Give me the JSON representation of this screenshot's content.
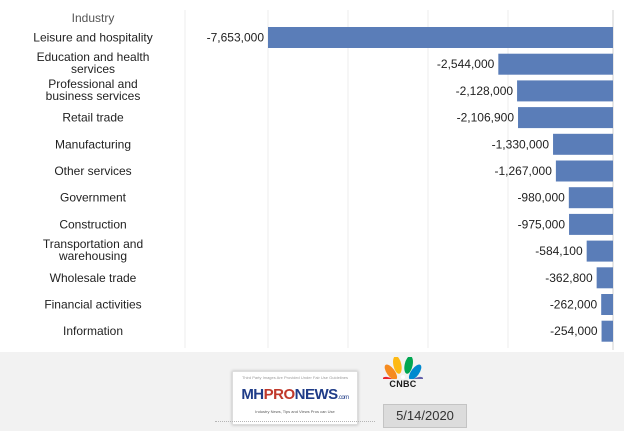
{
  "chart_data": {
    "type": "bar",
    "orientation": "horizontal",
    "category_header": "Industry",
    "categories": [
      "Leisure and hospitality",
      "Education and health services",
      "Professional and business services",
      "Retail trade",
      "Manufacturing",
      "Other services",
      "Government",
      "Construction",
      "Transportation and warehousing",
      "Wholesale trade",
      "Financial activities",
      "Information"
    ],
    "values": [
      -7653000,
      -2544000,
      -2128000,
      -2106900,
      -1330000,
      -1267000,
      -980000,
      -975000,
      -584100,
      -362800,
      -262000,
      -254000
    ],
    "value_labels": [
      "-7,653,000",
      "-2,544,000",
      "-2,128,000",
      "-2,106,900",
      "-1,330,000",
      "-1,267,000",
      "-980,000",
      "-975,000",
      "-584,100",
      "-362,800",
      "-262,000",
      "-254,000"
    ],
    "xlim": [
      -7653000,
      0
    ],
    "grid": true,
    "bar_color": "#5a7db8"
  },
  "footer": {
    "source_logo": "CNBC",
    "watermark": {
      "top_text": "Third Party Images Are Provided Under Fair Use Guidelines",
      "logo_mh": "MH",
      "logo_pro": "PRO",
      "logo_news": "NEWS",
      "logo_com": ".com",
      "tagline": "Industry News, Tips and Views Pros can Use"
    },
    "date": "5/14/2020"
  }
}
